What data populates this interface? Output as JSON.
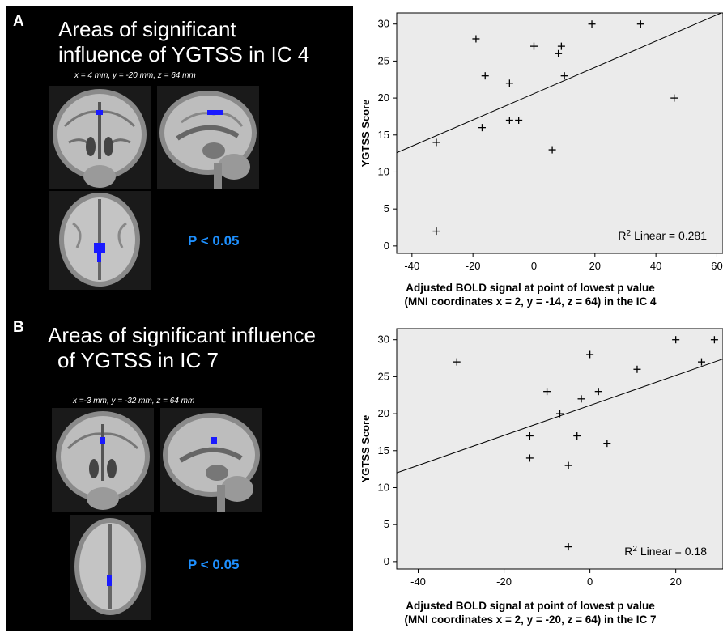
{
  "panels": [
    {
      "letter": "A",
      "title_lines": [
        "Areas of significant",
        "influence of YGTSS in IC 4"
      ],
      "coords": "x = 4 mm, y = -20 mm, z = 64 mm",
      "pvalue": "P < 0.05"
    },
    {
      "letter": "B",
      "title_lines": [
        "Areas of significant influence",
        "of YGTSS in IC 7"
      ],
      "coords": "x =-3 mm, y = -32 mm, z = 64 mm",
      "pvalue": "P < 0.05"
    }
  ],
  "colors": {
    "activation": "#1a1aff",
    "pvalue_text": "#1e90ff",
    "plot_background": "#ebebeb"
  },
  "chart_data": [
    {
      "type": "scatter",
      "ylabel": "YGTSS Score",
      "xlabel_lines": [
        "Adjusted BOLD signal at point of lowest p value",
        "(MNI coordinates x = 2, y = -14, z = 64) in the IC 4"
      ],
      "x_ticks": [
        -40,
        -20,
        0,
        20,
        40,
        60
      ],
      "y_ticks": [
        0,
        5,
        10,
        15,
        20,
        25,
        30
      ],
      "xlim": [
        -45,
        62
      ],
      "ylim": [
        -1,
        31.5
      ],
      "points": [
        {
          "x": -32,
          "y": 14
        },
        {
          "x": -32,
          "y": 2
        },
        {
          "x": -19,
          "y": 28
        },
        {
          "x": -16,
          "y": 23
        },
        {
          "x": -17,
          "y": 16
        },
        {
          "x": -8,
          "y": 22
        },
        {
          "x": -8,
          "y": 17
        },
        {
          "x": -5,
          "y": 17
        },
        {
          "x": 0,
          "y": 27
        },
        {
          "x": 6,
          "y": 13
        },
        {
          "x": 9,
          "y": 27
        },
        {
          "x": 8,
          "y": 26
        },
        {
          "x": 10,
          "y": 23
        },
        {
          "x": 19,
          "y": 30
        },
        {
          "x": 35,
          "y": 30
        },
        {
          "x": 46,
          "y": 20
        }
      ],
      "fit_line": {
        "x": [
          -45,
          62
        ],
        "y": [
          12.6,
          31.6
        ]
      },
      "r2_label": "Linear = 0.281",
      "r2_prefix": "R"
    },
    {
      "type": "scatter",
      "ylabel": "YGTSS Score",
      "xlabel_lines": [
        "Adjusted BOLD signal at point of lowest p value",
        "(MNI coordinates x = 2, y = -20, z = 64) in the IC 7"
      ],
      "x_ticks": [
        -40,
        -20,
        0,
        20
      ],
      "y_ticks": [
        0,
        5,
        10,
        15,
        20,
        25,
        30
      ],
      "xlim": [
        -45,
        31
      ],
      "ylim": [
        -1,
        31.5
      ],
      "points": [
        {
          "x": -31,
          "y": 27
        },
        {
          "x": -10,
          "y": 23
        },
        {
          "x": -14,
          "y": 17
        },
        {
          "x": -14,
          "y": 14
        },
        {
          "x": -7,
          "y": 20
        },
        {
          "x": -5,
          "y": 13
        },
        {
          "x": -5,
          "y": 2
        },
        {
          "x": -3,
          "y": 17
        },
        {
          "x": -2,
          "y": 22
        },
        {
          "x": 0,
          "y": 28
        },
        {
          "x": 2,
          "y": 23
        },
        {
          "x": 4,
          "y": 16
        },
        {
          "x": 11,
          "y": 26
        },
        {
          "x": 20,
          "y": 30
        },
        {
          "x": 26,
          "y": 27
        },
        {
          "x": 29,
          "y": 30
        }
      ],
      "fit_line": {
        "x": [
          -45,
          31
        ],
        "y": [
          12.0,
          27.4
        ]
      },
      "r2_label": "Linear = 0.18",
      "r2_prefix": "R"
    }
  ]
}
